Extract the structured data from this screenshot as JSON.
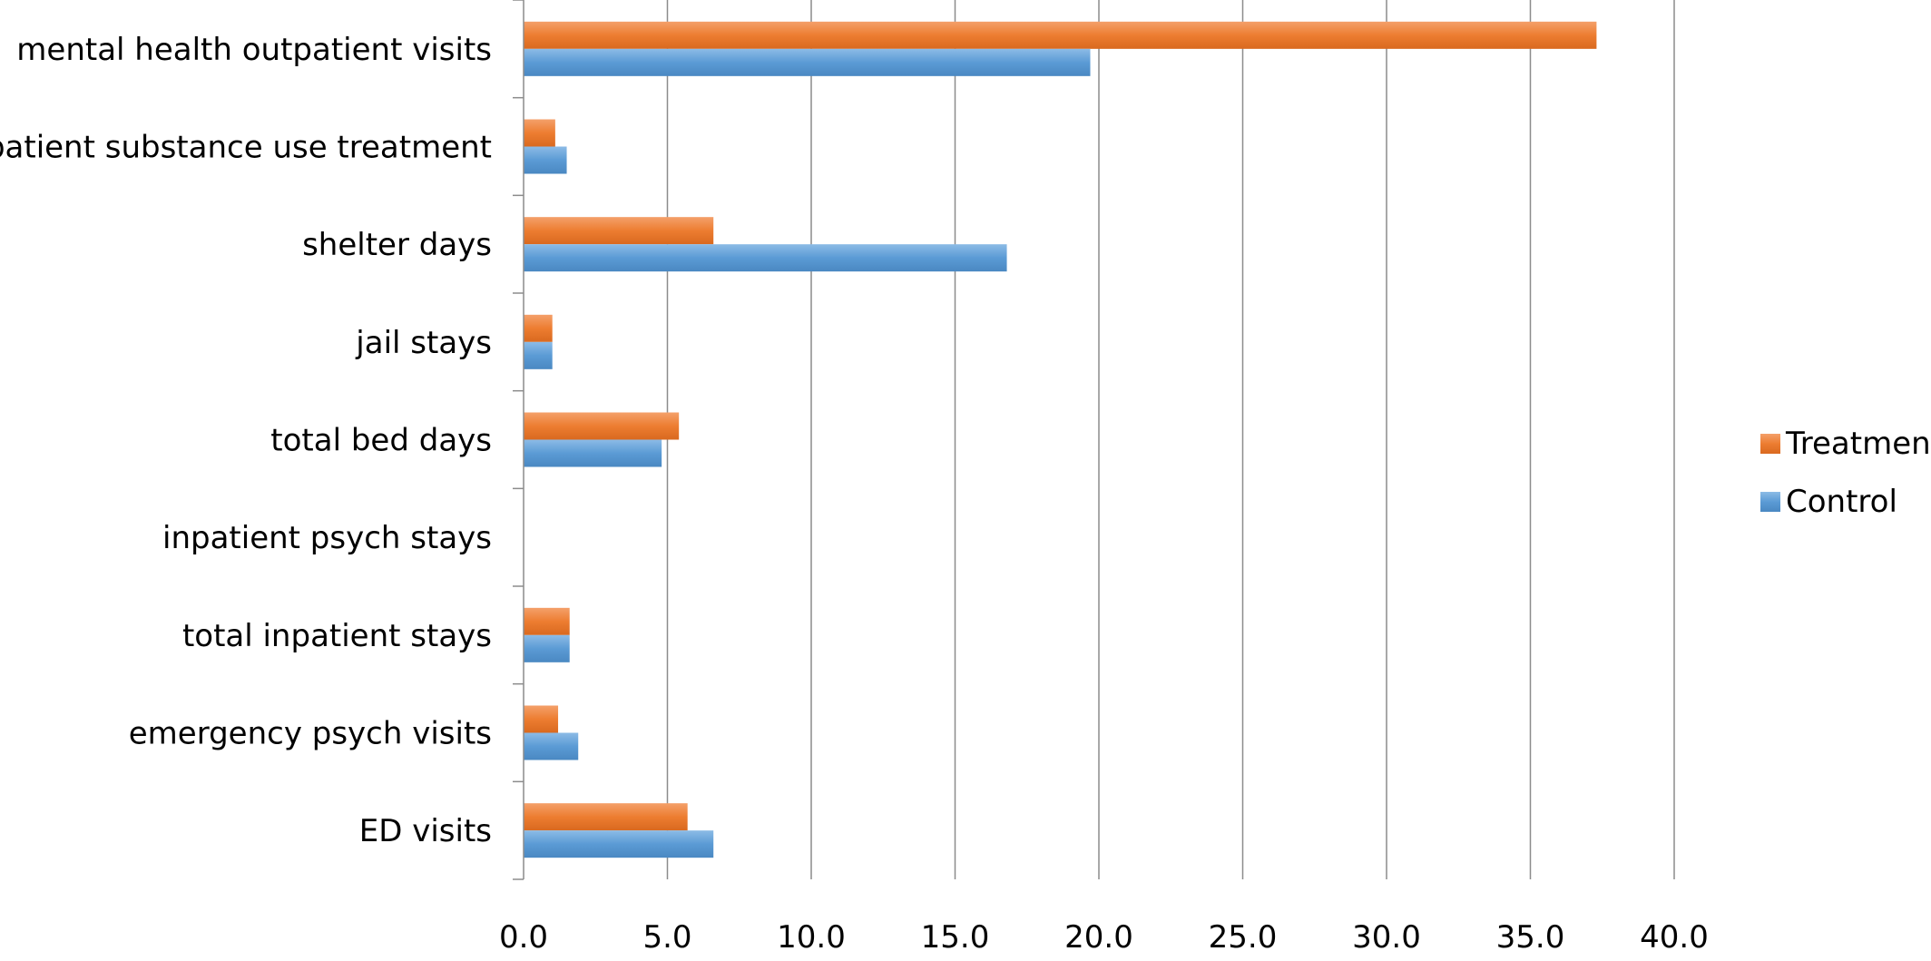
{
  "chart_data": {
    "type": "bar",
    "orientation": "horizontal",
    "categories": [
      "mental health outpatient visits",
      "outpatient substance use treatment",
      "shelter days",
      "jail stays",
      "total bed days",
      "inpatient psych stays",
      "total inpatient stays",
      "emergency psych visits",
      "ED visits"
    ],
    "series": [
      {
        "name": "Treatment",
        "color": "#ED7D31",
        "values": [
          37.3,
          1.1,
          6.6,
          1.0,
          5.4,
          0.0,
          1.6,
          1.2,
          5.7
        ]
      },
      {
        "name": "Control",
        "color": "#5B9BD5",
        "values": [
          19.7,
          1.5,
          16.8,
          1.0,
          4.8,
          0.0,
          1.6,
          1.9,
          6.6
        ]
      }
    ],
    "xlim": [
      0,
      40
    ],
    "xticks": [
      "0.0",
      "5.0",
      "10.0",
      "15.0",
      "20.0",
      "25.0",
      "30.0",
      "35.0",
      "40.0"
    ],
    "title": "",
    "xlabel": "",
    "ylabel": "",
    "grid": "vertical",
    "legend_position": "right"
  }
}
